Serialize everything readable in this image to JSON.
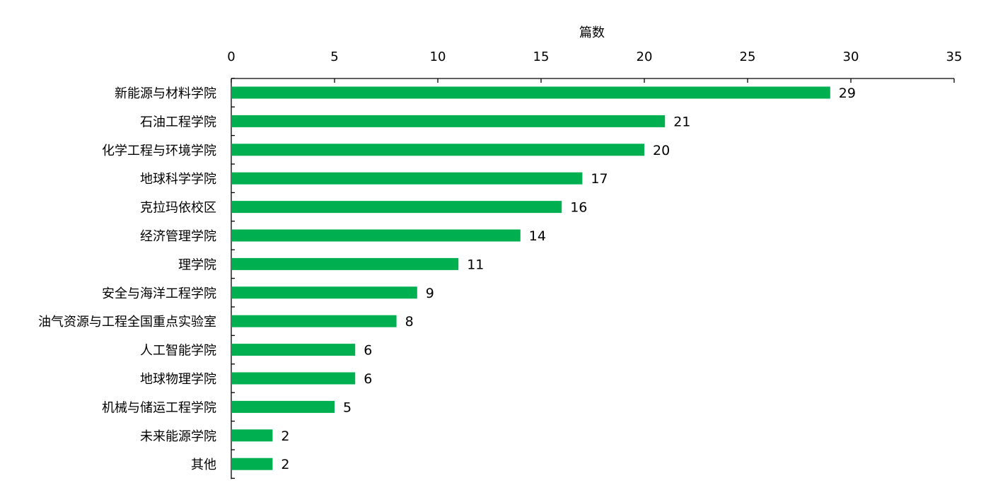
{
  "chart_data": {
    "type": "bar",
    "orientation": "horizontal",
    "title": "",
    "xlabel": "篇数",
    "ylabel": "",
    "xlim": [
      0,
      35
    ],
    "x_ticks": [
      0,
      5,
      10,
      15,
      20,
      25,
      30,
      35
    ],
    "x_axis_position": "top",
    "grid": false,
    "legend": "none",
    "data_labels": true,
    "bar_color": "#00B050",
    "categories": [
      "新能源与材料学院",
      "石油工程学院",
      "化学工程与环境学院",
      "地球科学学院",
      "克拉玛依校区",
      "经济管理学院",
      "理学院",
      "安全与海洋工程学院",
      "油气资源与工程全国重点实验室",
      "人工智能学院",
      "地球物理学院",
      "机械与储运工程学院",
      "未来能源学院",
      "其他"
    ],
    "values": [
      29,
      21,
      20,
      17,
      16,
      14,
      11,
      9,
      8,
      6,
      6,
      5,
      2,
      2
    ]
  }
}
